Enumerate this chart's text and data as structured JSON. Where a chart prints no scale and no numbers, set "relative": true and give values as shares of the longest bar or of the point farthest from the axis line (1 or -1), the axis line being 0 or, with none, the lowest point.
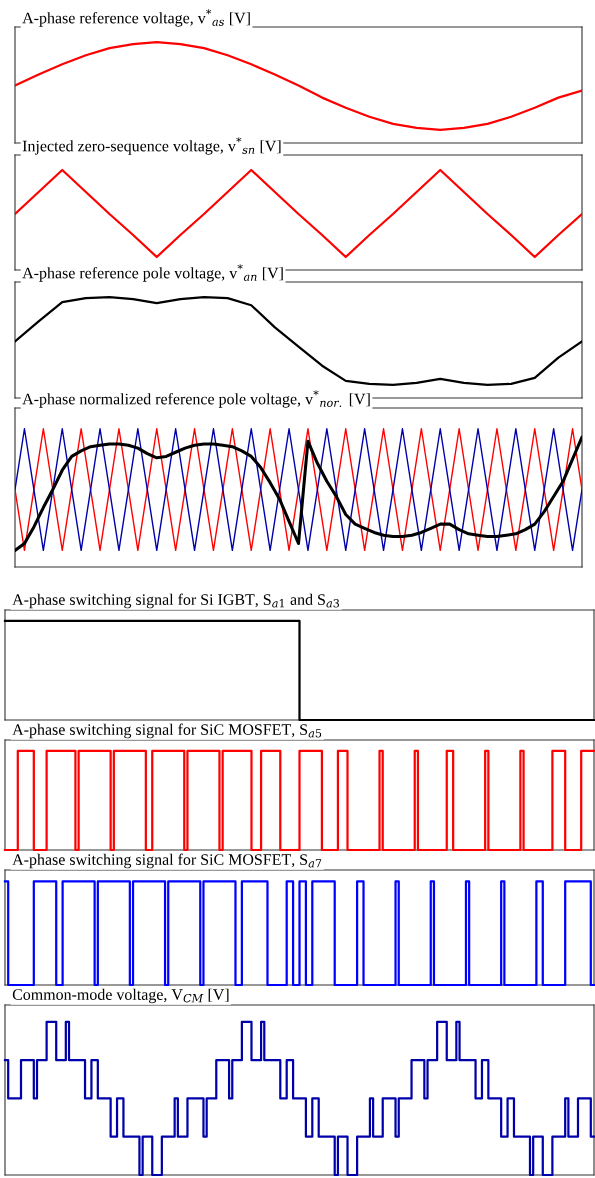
{
  "chart_data": [
    {
      "type": "line",
      "title": "A-phase reference voltage, v$^{*}$$_{as}$ [V]",
      "relative": true,
      "categories": [
        null,
        null,
        null,
        null,
        null,
        null,
        null,
        null,
        null,
        null,
        null,
        null,
        null,
        null,
        null,
        null,
        null,
        null,
        null,
        null,
        null,
        null,
        null,
        null,
        null
      ],
      "series": [
        {
          "color": "#ff0000",
          "values": [
            0.57,
            0.68,
            0.78,
            0.87,
            0.94,
            0.98,
            1,
            0.98,
            0.94,
            0.87,
            0.78,
            0.68,
            0.57,
            0.45,
            0.35,
            0.26,
            0.19,
            0.15,
            0.13,
            0.15,
            0.19,
            0.26,
            0.35,
            0.45,
            0.52
          ]
        }
      ]
    },
    {
      "type": "line",
      "title": "Injected zero-sequence voltage, v$^{*}$$_{sn}$ [V]",
      "relative": true,
      "categories": [
        null,
        null,
        null,
        null,
        null,
        null,
        null,
        null,
        null,
        null,
        null,
        null,
        null,
        null,
        null,
        null,
        null,
        null,
        null,
        null,
        null,
        null,
        null,
        null,
        null
      ],
      "series": [
        {
          "color": "#ff0000",
          "values": [
            0.56,
            0.78,
            1,
            0.78,
            0.56,
            0.35,
            0.13,
            0.35,
            0.56,
            0.78,
            1,
            0.78,
            0.56,
            0.35,
            0.13,
            0.35,
            0.56,
            0.78,
            1,
            0.78,
            0.56,
            0.35,
            0.13,
            0.35,
            0.56
          ]
        }
      ]
    },
    {
      "type": "line",
      "title": "A-phase reference pole voltage, v$^{*}$$_{an}$ [V]",
      "relative": true,
      "categories": [
        null,
        null,
        null,
        null,
        null,
        null,
        null,
        null,
        null,
        null,
        null,
        null,
        null,
        null,
        null,
        null,
        null,
        null,
        null,
        null,
        null,
        null,
        null,
        null,
        null
      ],
      "series": [
        {
          "color": "#000000",
          "values": [
            0.56,
            0.76,
            0.95,
            0.99,
            1,
            0.98,
            0.94,
            0.98,
            1,
            0.99,
            0.92,
            0.7,
            0.51,
            0.32,
            0.17,
            0.14,
            0.13,
            0.15,
            0.19,
            0.15,
            0.13,
            0.14,
            0.2,
            0.4,
            0.56
          ]
        }
      ]
    },
    {
      "type": "line",
      "title": "A-phase normalized reference pole voltage, v$^{*}$$_{nor.}$ [V]",
      "relative": true,
      "categories": [
        null,
        null,
        null,
        null,
        null,
        null,
        null,
        null,
        null,
        null,
        null,
        null,
        null,
        null,
        null,
        null,
        null,
        null,
        null,
        null,
        null,
        null,
        null,
        null,
        null,
        null,
        null,
        null,
        null,
        null,
        null,
        null,
        null,
        null,
        null,
        null,
        null,
        null,
        null,
        null,
        null,
        null,
        null,
        null,
        null,
        null,
        null,
        null,
        null,
        null,
        null,
        null,
        null,
        null,
        null,
        null,
        null,
        null,
        null,
        null,
        null
      ],
      "series": [
        {
          "color": "#ff0000",
          "values": [
            0.56,
            0.12,
            0.56,
            1,
            0.56,
            0.12,
            0.56,
            1,
            0.56,
            0.12,
            0.56,
            1,
            0.56,
            0.12,
            0.56,
            1,
            0.56,
            0.12,
            0.56,
            1,
            0.56,
            0.12,
            0.56,
            1,
            0.56,
            0.12,
            0.56,
            1,
            0.56,
            0.12,
            0.56,
            1,
            0.56,
            0.12,
            0.56,
            1,
            0.56,
            0.12,
            0.56,
            1,
            0.56,
            0.12,
            0.56,
            1,
            0.56,
            0.12,
            0.56,
            1,
            0.56,
            0.12,
            0.56,
            1,
            0.56,
            0.12,
            0.56,
            1,
            0.56,
            0.12,
            0.56,
            1,
            0.56
          ]
        },
        {
          "color": "#0000aa",
          "values": [
            0.56,
            1,
            0.56,
            0.12,
            0.56,
            1,
            0.56,
            0.12,
            0.56,
            1,
            0.56,
            0.12,
            0.56,
            1,
            0.56,
            0.12,
            0.56,
            1,
            0.56,
            0.12,
            0.56,
            1,
            0.56,
            0.12,
            0.56,
            1,
            0.56,
            0.12,
            0.56,
            1,
            0.56,
            0.12,
            0.56,
            1,
            0.56,
            0.12,
            0.56,
            1,
            0.56,
            0.12,
            0.56,
            1,
            0.56,
            0.12,
            0.56,
            1,
            0.56,
            0.12,
            0.56,
            1,
            0.56,
            0.12,
            0.56,
            1,
            0.56,
            0.12,
            0.56,
            1,
            0.56,
            0.12,
            0.56
          ]
        },
        {
          "color": "#000000",
          "values": [
            0.12,
            0.17,
            0.29,
            0.43,
            0.56,
            0.7,
            0.8,
            0.84,
            0.87,
            0.88,
            0.89,
            0.89,
            0.88,
            0.86,
            0.82,
            0.79,
            0.8,
            0.83,
            0.86,
            0.88,
            0.89,
            0.89,
            0.88,
            0.87,
            0.84,
            0.8,
            0.72,
            0.61,
            0.49,
            0.33,
            0.17,
            0.91,
            0.75,
            0.62,
            0.51,
            0.38,
            0.31,
            0.28,
            0.25,
            0.23,
            0.22,
            0.22,
            0.23,
            0.25,
            0.28,
            0.31,
            0.31,
            0.27,
            0.24,
            0.23,
            0.22,
            0.22,
            0.23,
            0.24,
            0.27,
            0.31,
            0.4,
            0.51,
            0.62,
            0.78,
            0.94
          ]
        }
      ]
    },
    {
      "type": "step",
      "title": "A-phase switching signal for Si IGBT, S$_{a1}$ and S$_{a3}$",
      "relative": true,
      "categories": [
        null,
        null,
        null,
        null,
        null,
        null,
        null,
        null,
        null,
        null,
        null,
        null,
        null,
        null,
        null,
        null,
        null,
        null,
        null,
        null,
        null,
        null,
        null,
        null,
        null,
        null,
        null,
        null,
        null,
        null,
        null,
        null,
        null,
        null,
        null,
        null,
        null,
        null,
        null,
        null,
        null,
        null,
        null,
        null,
        null,
        null,
        null,
        null,
        null,
        null,
        null,
        null,
        null,
        null,
        null,
        null,
        null,
        null,
        null,
        null,
        null,
        null,
        null,
        null,
        null,
        null,
        null,
        null,
        null,
        null,
        null,
        null,
        null,
        null,
        null,
        null,
        null,
        null,
        null,
        null,
        null,
        null,
        null,
        null,
        null,
        null,
        null,
        null,
        null,
        null,
        null,
        null,
        null,
        null,
        null,
        null,
        null,
        null,
        null,
        null,
        null,
        null,
        null,
        null,
        null,
        null,
        null,
        null,
        null,
        null,
        null,
        null,
        null,
        null,
        null,
        null,
        null,
        null,
        null,
        null,
        null,
        null,
        null,
        null,
        null,
        null,
        null,
        null,
        null,
        null,
        null,
        null,
        null,
        null,
        null,
        null,
        null,
        null,
        null,
        null,
        null,
        null,
        null,
        null,
        null,
        null,
        null,
        null,
        null,
        null,
        null,
        null,
        null,
        null,
        null,
        null,
        null,
        null,
        null,
        null,
        null,
        null,
        null,
        null,
        null,
        null,
        null,
        null,
        null,
        null,
        null,
        null,
        null,
        null,
        null,
        null,
        null,
        null,
        null,
        null,
        null,
        null,
        null,
        null,
        null
      ],
      "series": [
        {
          "color": "#000000",
          "values": [
            1,
            1,
            1,
            1,
            1,
            1,
            1,
            1,
            1,
            1,
            1,
            1,
            1,
            1,
            1,
            1,
            1,
            1,
            1,
            1,
            1,
            1,
            1,
            1,
            1,
            1,
            1,
            1,
            1,
            1,
            1,
            1,
            1,
            1,
            1,
            1,
            1,
            1,
            1,
            1,
            1,
            1,
            1,
            1,
            1,
            1,
            1,
            1,
            1,
            1,
            1,
            1,
            1,
            1,
            1,
            1,
            1,
            1,
            1,
            1,
            1,
            1,
            1,
            1,
            1,
            1,
            1,
            1,
            1,
            1,
            1,
            1,
            1,
            1,
            1,
            1,
            1,
            1,
            1,
            1,
            1,
            1,
            1,
            1,
            1,
            1,
            1,
            1,
            1,
            1,
            1,
            1,
            0,
            0,
            0,
            0,
            0,
            0,
            0,
            0,
            0,
            0,
            0,
            0,
            0,
            0,
            0,
            0,
            0,
            0,
            0,
            0,
            0,
            0,
            0,
            0,
            0,
            0,
            0,
            0,
            0,
            0,
            0,
            0,
            0,
            0,
            0,
            0,
            0,
            0,
            0,
            0,
            0,
            0,
            0,
            0,
            0,
            0,
            0,
            0,
            0,
            0,
            0,
            0,
            0,
            0,
            0,
            0,
            0,
            0,
            0,
            0,
            0,
            0,
            0,
            0,
            0,
            0,
            0,
            0,
            0,
            0,
            0,
            0,
            0,
            0,
            0,
            0,
            0,
            0,
            0,
            0,
            0,
            0,
            0,
            0,
            0,
            0,
            0,
            0,
            0,
            0,
            0,
            0,
            0
          ]
        }
      ]
    },
    {
      "type": "step",
      "title": "A-phase switching signal for SiC MOSFET, S$_{a5}$",
      "relative": true,
      "categories": [
        null,
        null,
        null,
        null,
        null,
        null,
        null,
        null,
        null,
        null,
        null,
        null,
        null,
        null,
        null,
        null,
        null,
        null,
        null,
        null,
        null,
        null,
        null,
        null,
        null,
        null,
        null,
        null,
        null,
        null,
        null,
        null,
        null,
        null,
        null,
        null,
        null,
        null,
        null,
        null,
        null,
        null,
        null,
        null,
        null,
        null,
        null,
        null,
        null,
        null,
        null,
        null,
        null,
        null,
        null,
        null,
        null,
        null,
        null,
        null,
        null,
        null,
        null,
        null,
        null,
        null,
        null,
        null,
        null,
        null,
        null,
        null,
        null,
        null,
        null,
        null,
        null,
        null,
        null,
        null,
        null,
        null,
        null,
        null,
        null,
        null,
        null,
        null,
        null,
        null,
        null,
        null,
        null,
        null,
        null,
        null,
        null,
        null,
        null,
        null,
        null,
        null,
        null,
        null,
        null,
        null,
        null,
        null,
        null,
        null,
        null,
        null,
        null,
        null,
        null,
        null,
        null,
        null,
        null,
        null,
        null,
        null,
        null,
        null,
        null,
        null,
        null,
        null,
        null,
        null,
        null,
        null,
        null,
        null,
        null,
        null,
        null,
        null,
        null,
        null,
        null,
        null,
        null,
        null,
        null,
        null,
        null,
        null,
        null,
        null,
        null,
        null,
        null,
        null,
        null,
        null,
        null,
        null,
        null,
        null,
        null,
        null,
        null,
        null,
        null,
        null,
        null,
        null,
        null,
        null,
        null,
        null,
        null,
        null,
        null,
        null,
        null,
        null,
        null,
        null,
        null,
        null,
        null,
        null,
        null
      ],
      "series": [
        {
          "color": "#ff0000",
          "values": [
            0,
            0,
            0,
            0,
            1,
            1,
            1,
            1,
            1,
            0,
            0,
            0,
            0,
            1,
            1,
            1,
            1,
            1,
            1,
            1,
            1,
            1,
            0,
            1,
            1,
            1,
            1,
            1,
            1,
            1,
            1,
            1,
            1,
            0,
            1,
            1,
            1,
            1,
            1,
            1,
            1,
            1,
            1,
            1,
            0,
            0,
            1,
            1,
            1,
            1,
            1,
            1,
            1,
            1,
            1,
            1,
            0,
            1,
            1,
            1,
            1,
            1,
            1,
            1,
            1,
            1,
            1,
            0,
            1,
            1,
            1,
            1,
            1,
            1,
            1,
            1,
            1,
            0,
            0,
            0,
            1,
            1,
            1,
            1,
            1,
            1,
            0,
            0,
            0,
            0,
            0,
            0,
            1,
            1,
            1,
            1,
            1,
            1,
            1,
            0,
            0,
            0,
            0,
            0,
            1,
            1,
            1,
            0,
            0,
            0,
            0,
            0,
            0,
            0,
            0,
            0,
            0,
            1,
            0,
            0,
            0,
            0,
            0,
            0,
            0,
            0,
            0,
            0,
            1,
            0,
            0,
            0,
            0,
            0,
            0,
            0,
            0,
            0,
            1,
            1,
            0,
            0,
            0,
            0,
            0,
            0,
            0,
            0,
            0,
            0,
            1,
            0,
            0,
            0,
            0,
            0,
            0,
            0,
            0,
            0,
            0,
            1,
            0,
            0,
            0,
            0,
            0,
            0,
            0,
            0,
            0,
            1,
            1,
            1,
            1,
            0,
            0,
            0,
            0,
            0,
            1,
            1,
            1,
            1,
            1
          ]
        }
      ]
    },
    {
      "type": "step",
      "title": "A-phase switching signal for SiC MOSFET, S$_{a7}$",
      "relative": true,
      "categories": [
        null,
        null,
        null,
        null,
        null,
        null,
        null,
        null,
        null,
        null,
        null,
        null,
        null,
        null,
        null,
        null,
        null,
        null,
        null,
        null,
        null,
        null,
        null,
        null,
        null,
        null,
        null,
        null,
        null,
        null,
        null,
        null,
        null,
        null,
        null,
        null,
        null,
        null,
        null,
        null,
        null,
        null,
        null,
        null,
        null,
        null,
        null,
        null,
        null,
        null,
        null,
        null,
        null,
        null,
        null,
        null,
        null,
        null,
        null,
        null,
        null,
        null,
        null,
        null,
        null,
        null,
        null,
        null,
        null,
        null,
        null,
        null,
        null,
        null,
        null,
        null,
        null,
        null,
        null,
        null,
        null,
        null,
        null,
        null,
        null,
        null,
        null,
        null,
        null,
        null,
        null,
        null,
        null,
        null,
        null,
        null,
        null,
        null,
        null,
        null,
        null,
        null,
        null,
        null,
        null,
        null,
        null,
        null,
        null,
        null,
        null,
        null,
        null,
        null,
        null,
        null,
        null,
        null,
        null,
        null,
        null,
        null,
        null,
        null,
        null,
        null,
        null,
        null,
        null,
        null,
        null,
        null,
        null,
        null,
        null,
        null,
        null,
        null,
        null,
        null,
        null,
        null,
        null,
        null,
        null,
        null,
        null,
        null,
        null,
        null,
        null,
        null,
        null,
        null,
        null,
        null,
        null,
        null,
        null,
        null,
        null,
        null,
        null,
        null,
        null,
        null,
        null,
        null,
        null,
        null,
        null,
        null,
        null,
        null,
        null,
        null,
        null,
        null,
        null,
        null,
        null,
        null,
        null,
        null,
        null
      ],
      "series": [
        {
          "color": "#0000ff",
          "values": [
            1,
            0,
            0,
            0,
            0,
            0,
            0,
            0,
            0,
            1,
            1,
            1,
            1,
            1,
            1,
            1,
            0,
            0,
            1,
            1,
            1,
            1,
            1,
            1,
            1,
            1,
            1,
            1,
            0,
            1,
            1,
            1,
            1,
            1,
            1,
            1,
            1,
            1,
            1,
            0,
            1,
            1,
            1,
            1,
            1,
            1,
            1,
            1,
            1,
            1,
            0,
            1,
            1,
            1,
            1,
            1,
            1,
            1,
            1,
            1,
            1,
            0,
            1,
            1,
            1,
            1,
            1,
            1,
            1,
            1,
            1,
            1,
            0,
            0,
            1,
            1,
            1,
            1,
            1,
            1,
            1,
            1,
            0,
            0,
            0,
            0,
            0,
            0,
            1,
            1,
            0,
            0,
            1,
            1,
            0,
            0,
            1,
            1,
            1,
            1,
            1,
            1,
            1,
            0,
            0,
            0,
            0,
            0,
            0,
            0,
            1,
            1,
            0,
            0,
            0,
            0,
            0,
            0,
            0,
            0,
            0,
            0,
            1,
            0,
            0,
            0,
            0,
            0,
            0,
            0,
            0,
            0,
            0,
            1,
            0,
            0,
            0,
            0,
            0,
            0,
            0,
            0,
            0,
            0,
            1,
            0,
            0,
            0,
            0,
            0,
            0,
            0,
            0,
            0,
            0,
            1,
            0,
            0,
            0,
            0,
            0,
            0,
            0,
            0,
            0,
            0,
            1,
            1,
            0,
            0,
            0,
            0,
            0,
            0,
            0,
            1,
            1,
            1,
            1,
            1,
            1,
            1,
            1,
            0,
            0
          ]
        }
      ]
    },
    {
      "type": "step",
      "title": "Common-mode voltage, V$_{CM}$ [V]",
      "relative": true,
      "categories": [
        null,
        null,
        null,
        null,
        null,
        null,
        null,
        null,
        null,
        null,
        null,
        null,
        null,
        null,
        null,
        null,
        null,
        null,
        null,
        null,
        null,
        null,
        null,
        null,
        null,
        null,
        null,
        null,
        null,
        null,
        null,
        null,
        null,
        null,
        null,
        null,
        null,
        null,
        null,
        null,
        null,
        null,
        null,
        null,
        null,
        null,
        null,
        null,
        null,
        null,
        null,
        null,
        null,
        null,
        null,
        null,
        null,
        null,
        null,
        null,
        null,
        null,
        null,
        null,
        null,
        null,
        null,
        null,
        null,
        null,
        null,
        null,
        null,
        null,
        null,
        null,
        null,
        null,
        null,
        null,
        null,
        null,
        null,
        null,
        null,
        null,
        null,
        null,
        null,
        null,
        null,
        null,
        null,
        null,
        null,
        null,
        null,
        null,
        null,
        null,
        null,
        null,
        null,
        null,
        null,
        null,
        null,
        null,
        null,
        null,
        null,
        null,
        null,
        null,
        null,
        null,
        null,
        null,
        null,
        null,
        null,
        null,
        null,
        null,
        null,
        null,
        null,
        null,
        null,
        null,
        null,
        null,
        null,
        null,
        null,
        null,
        null,
        null,
        null,
        null,
        null,
        null,
        null,
        null,
        null,
        null,
        null,
        null,
        null,
        null,
        null,
        null,
        null,
        null,
        null,
        null,
        null,
        null,
        null,
        null,
        null,
        null,
        null,
        null,
        null,
        null,
        null,
        null,
        null,
        null,
        null,
        null,
        null,
        null,
        null,
        null,
        null,
        null,
        null,
        null,
        null,
        null,
        null,
        null,
        null
      ],
      "series": [
        {
          "color": "#0000aa",
          "values": [
            0.75,
            0.5,
            0.5,
            0.5,
            0.5,
            0.75,
            0.75,
            0.75,
            0.75,
            0.5,
            0.75,
            0.75,
            0.75,
            1,
            1,
            1,
            0.75,
            0.75,
            0.75,
            1,
            0.75,
            0.75,
            0.75,
            0.75,
            0.75,
            0.5,
            0.5,
            0.75,
            0.75,
            0.5,
            0.5,
            0.5,
            0.5,
            0.25,
            0.25,
            0.5,
            0.5,
            0.25,
            0.25,
            0.25,
            0.25,
            0.25,
            0,
            0.25,
            0.25,
            0.25,
            0,
            0,
            0,
            0.25,
            0.25,
            0.25,
            0.25,
            0.5,
            0.25,
            0.25,
            0.25,
            0.5,
            0.5,
            0.5,
            0.5,
            0.5,
            0.25,
            0.5,
            0.5,
            0.5,
            0.75,
            0.75,
            0.75,
            0.75,
            0.5,
            0.75,
            0.75,
            0.75,
            1,
            1,
            1,
            0.75,
            0.75,
            0.75,
            1,
            0.75,
            0.75,
            0.75,
            0.75,
            0.75,
            0.5,
            0.5,
            0.75,
            0.75,
            0.5,
            0.5,
            0.5,
            0.5,
            0.25,
            0.25,
            0.5,
            0.5,
            0.25,
            0.25,
            0.25,
            0.25,
            0.25,
            0,
            0.25,
            0.25,
            0.25,
            0,
            0,
            0,
            0.25,
            0.25,
            0.25,
            0.25,
            0.5,
            0.25,
            0.25,
            0.25,
            0.5,
            0.5,
            0.5,
            0.5,
            0.25,
            0.5,
            0.5,
            0.5,
            0.5,
            0.75,
            0.75,
            0.75,
            0.75,
            0.5,
            0.75,
            0.75,
            0.75,
            1,
            1,
            1,
            0.75,
            0.75,
            0.75,
            1,
            0.75,
            0.75,
            0.75,
            0.75,
            0.75,
            0.5,
            0.5,
            0.75,
            0.75,
            0.5,
            0.5,
            0.5,
            0.5,
            0.25,
            0.25,
            0.5,
            0.5,
            0.25,
            0.25,
            0.25,
            0.25,
            0.25,
            0,
            0.25,
            0.25,
            0.25,
            0,
            0,
            0,
            0.25,
            0.25,
            0.25,
            0.25,
            0.5,
            0.25,
            0.25,
            0.25,
            0.5,
            0.5,
            0.5,
            0.5,
            0.25,
            0.25
          ]
        }
      ]
    }
  ]
}
